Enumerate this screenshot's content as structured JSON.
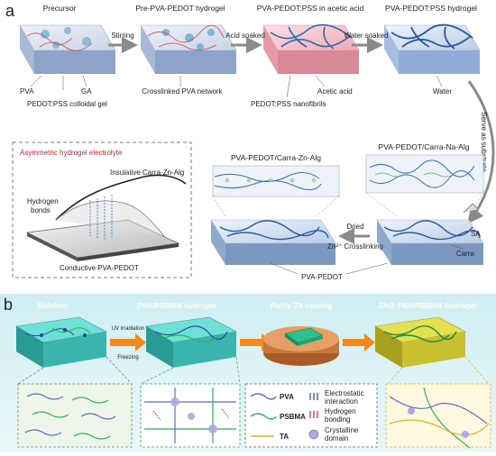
{
  "panel_a": {
    "letter": "a",
    "steps": {
      "precursor": "Precursor",
      "pre_hydrogel": "Pre-PVA-PEDOT hydrogel",
      "acetic": "PVA-PEDOT:PSS in acetic acid",
      "hydrogel": "PVA-PEDOT:PSS hydrogel"
    },
    "arrows": {
      "stirring": "Stirring",
      "acid_soaked": "Acid soaked",
      "water_soaked": "Water soaked",
      "serve": "Serve as substrate",
      "dried": "Dried",
      "zn": "Zn²⁺ Crosslinking"
    },
    "callouts": {
      "pva": "PVA",
      "ga": "GA",
      "pedot_gel": "PEDOT:PSS colloidal gel",
      "crosslinked": "Crosslinked PVA network",
      "acetic_acid": "Acetic acid",
      "nanofibrils": "PEDOT:PSS nanofibrils",
      "water": "Water"
    },
    "asym": {
      "title": "Asymmetric hydrogel electrolyte",
      "insulative": "Insulative Carra-Zn-Alg",
      "hbonds": "Hydrogen\nbonds",
      "conductive": "Conductive PVA-PEDOT"
    },
    "lower": {
      "zn_alg": "PVA-PEDOT/Carra-Zn-Alg",
      "na_alg": "PVA-PEDOT/Carra-Na-Alg",
      "sa": "SA",
      "carra": "Carra",
      "pva_pedot": "PVA-PEDOT"
    }
  },
  "panel_b": {
    "letter": "b",
    "stages": {
      "solution": "Solution",
      "pva_psbma": "PVA/PSBMA hydrogel",
      "ta_coating": "Partly TA coating",
      "ta_hydrogel": "TA@ PVA/PSBMA hydrogel"
    },
    "process": {
      "uv": "UV irradiation",
      "freezing": "Freezing"
    },
    "legend": {
      "pva": "PVA",
      "psbma": "PSBMA",
      "ta": "TA",
      "electrostatic": "Electrostatic\ninteraction",
      "hydrogen": "Hydrogen\nbonding",
      "crystalline": "Crystalline\ndomain"
    }
  },
  "colors": {
    "navy": "#2e4a7a",
    "pvaBlue": "#7b9bd0",
    "pink": "#f2b8c0",
    "teal": "#3aa8a0",
    "psbmaGreen": "#2fb05a",
    "taYellow": "#e2b21f",
    "orangeArrow": "#f08a1e",
    "red": "#d2232a",
    "bgCyan": "#d6f0f2"
  }
}
